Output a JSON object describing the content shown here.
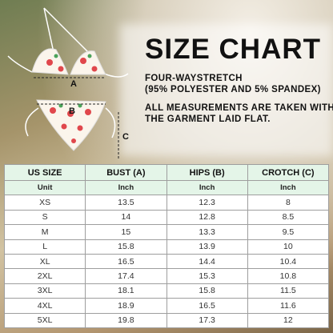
{
  "header": {
    "title": "SIZE CHART",
    "lines": [
      "FOUR-WAYSTRETCH",
      "(95% POLYESTER AND 5% SPANDEX)"
    ],
    "note": [
      "ALL MEASUREMENTS ARE TAKEN WITH",
      "THE GARMENT LAID FLAT."
    ]
  },
  "diagram": {
    "labels": [
      "A",
      "B",
      "C"
    ]
  },
  "table": {
    "columns": [
      "US SIZE",
      "BUST (A)",
      "HIPS (B)",
      "CROTCH (C)"
    ],
    "units": [
      "Unit",
      "Inch",
      "Inch",
      "Inch"
    ],
    "rows": [
      [
        "XS",
        "13.5",
        "12.3",
        "8"
      ],
      [
        "S",
        "14",
        "12.8",
        "8.5"
      ],
      [
        "M",
        "15",
        "13.3",
        "9.5"
      ],
      [
        "L",
        "15.8",
        "13.9",
        "10"
      ],
      [
        "XL",
        "16.5",
        "14.4",
        "10.4"
      ],
      [
        "2XL",
        "17.4",
        "15.3",
        "10.8"
      ],
      [
        "3XL",
        "18.1",
        "15.8",
        "11.5"
      ],
      [
        "4XL",
        "18.9",
        "16.5",
        "11.6"
      ],
      [
        "5XL",
        "19.8",
        "17.3",
        "12"
      ]
    ]
  }
}
